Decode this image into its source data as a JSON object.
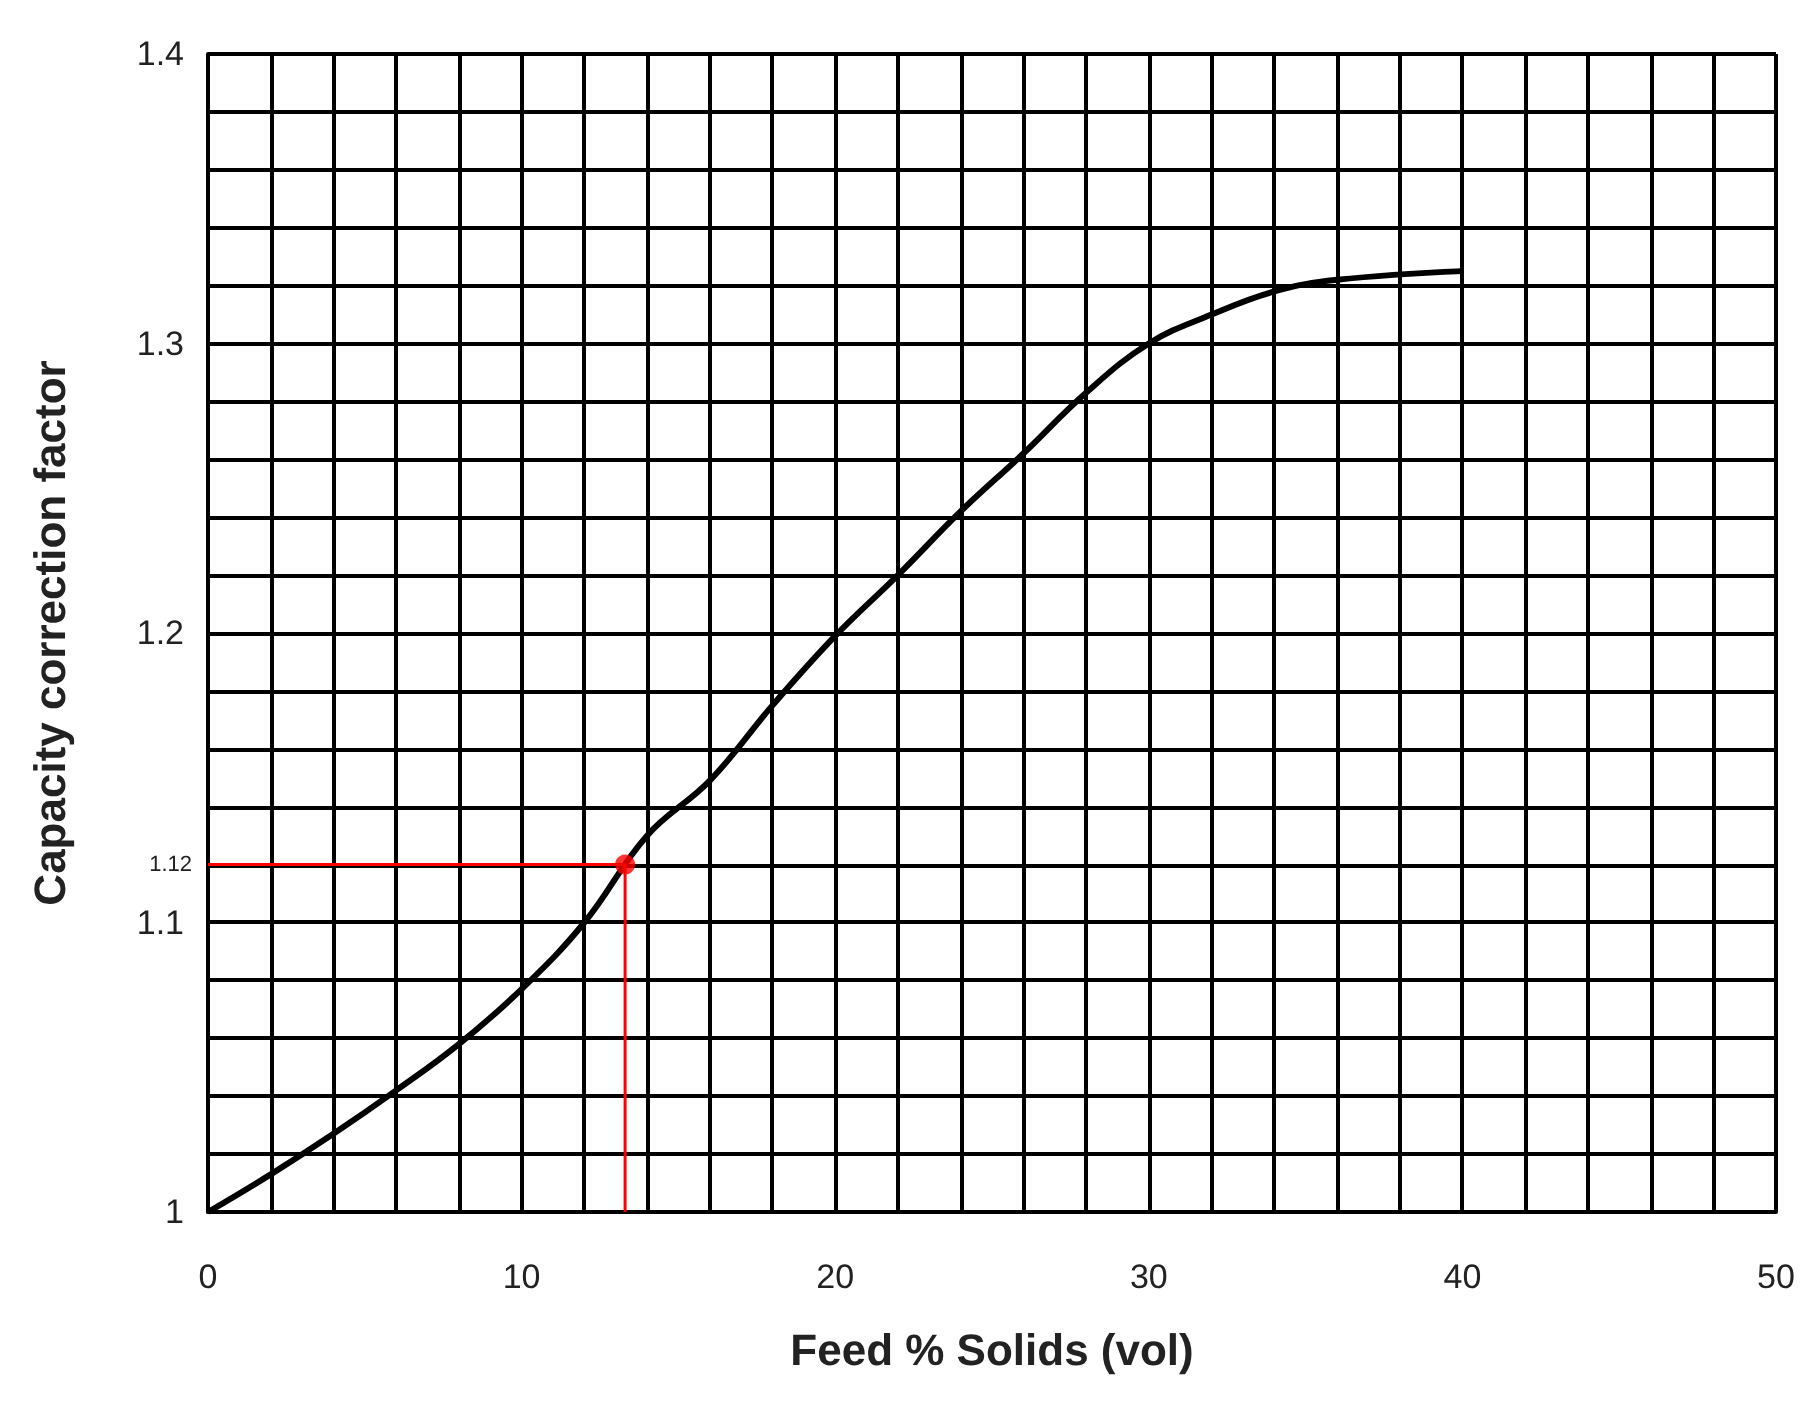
{
  "chart_data": {
    "type": "line",
    "xlabel": "Feed % Solids (vol)",
    "ylabel": "Capacity correction factor",
    "xlim": [
      0,
      50
    ],
    "ylim": [
      1,
      1.4
    ],
    "xticks": [
      0,
      {
        "value": 2,
        "label": null
      },
      {
        "value": 4,
        "label": null
      },
      {
        "value": 6,
        "label": null
      },
      {
        "value": 8,
        "label": null
      },
      10,
      {
        "value": 12,
        "label": null
      },
      {
        "value": 14,
        "label": null
      },
      {
        "value": 16,
        "label": null
      },
      {
        "value": 18,
        "label": null
      },
      20,
      {
        "value": 22,
        "label": null
      },
      {
        "value": 24,
        "label": null
      },
      {
        "value": 26,
        "label": null
      },
      {
        "value": 28,
        "label": null
      },
      30,
      {
        "value": 32,
        "label": null
      },
      {
        "value": 34,
        "label": null
      },
      {
        "value": 36,
        "label": null
      },
      {
        "value": 38,
        "label": null
      },
      40,
      {
        "value": 42,
        "label": null
      },
      {
        "value": 44,
        "label": null
      },
      {
        "value": 46,
        "label": null
      },
      {
        "value": 48,
        "label": null
      },
      50
    ],
    "yticks": [
      1,
      {
        "value": 1.02,
        "label": null
      },
      {
        "value": 1.04,
        "label": null
      },
      {
        "value": 1.06,
        "label": null
      },
      {
        "value": 1.08,
        "label": null
      },
      1.1,
      {
        "value": 1.12,
        "label": null
      },
      {
        "value": 1.14,
        "label": null
      },
      {
        "value": 1.16,
        "label": null
      },
      {
        "value": 1.18,
        "label": null
      },
      1.2,
      {
        "value": 1.22,
        "label": null
      },
      {
        "value": 1.24,
        "label": null
      },
      {
        "value": 1.26,
        "label": null
      },
      {
        "value": 1.28,
        "label": null
      },
      1.3,
      {
        "value": 1.32,
        "label": null
      },
      {
        "value": 1.34,
        "label": null
      },
      {
        "value": 1.36,
        "label": null
      },
      {
        "value": 1.38,
        "label": null
      },
      1.4
    ],
    "grid": true,
    "marker": "none",
    "line_style": "solid",
    "series": [
      {
        "color": "#000000",
        "x": [
          0,
          2,
          4,
          6,
          8,
          10,
          12,
          14,
          16,
          18,
          20,
          22,
          24,
          26,
          28,
          30,
          32,
          34,
          36,
          40
        ],
        "values": [
          1,
          1.013,
          1.027,
          1.042,
          1.058,
          1.077,
          1.1,
          1.13,
          1.149,
          1.175,
          1.199,
          1.22,
          1.242,
          1.262,
          1.283,
          1.3,
          1.31,
          1.318,
          1.322,
          1.325
        ]
      },
      {
        "color": "#ff0000",
        "x": [
          0,
          13.3,
          13.3
        ],
        "values": [
          1.12,
          1.12,
          1
        ]
      },
      {
        "type": "scatter",
        "color": "#ff0000",
        "marker": "circle",
        "x": [
          13.3
        ],
        "values": [
          1.12
        ]
      }
    ],
    "annotations": [
      {
        "text": "1.12",
        "x": 0,
        "y": 1.12
      }
    ]
  }
}
